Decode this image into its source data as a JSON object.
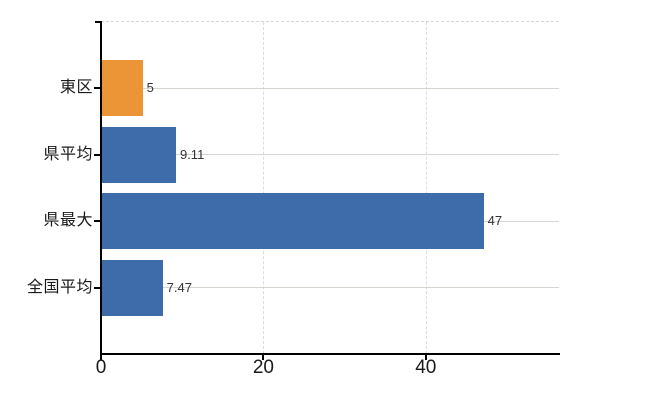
{
  "chart_data": {
    "type": "bar",
    "orientation": "horizontal",
    "title": "",
    "xlabel": "",
    "ylabel": "",
    "categories": [
      "東区",
      "県平均",
      "県最大",
      "全国平均"
    ],
    "values": [
      5,
      9.11,
      47,
      7.47
    ],
    "value_labels": [
      "5",
      "9.11",
      "47",
      "7.47"
    ],
    "bar_colors": [
      "#ec9536",
      "#3e6cab",
      "#3e6cab",
      "#3e6cab"
    ],
    "xlim": [
      0,
      56.4
    ],
    "x_ticks": [
      0,
      20,
      40
    ],
    "x_tick_labels": [
      "0",
      "20",
      "40"
    ],
    "grid": "on",
    "legend": "none"
  },
  "colors": {
    "background": "#ffffff",
    "axis": "#000000",
    "gridline_horizontal": "#d2d8cf",
    "gridline_vertical_dashed": "#dcdcdc",
    "plot_top_border_dashed": "#d7d7d7",
    "bar_highlight_orange": "#ec9536",
    "bar_blue": "#3e6cab",
    "label_text": "#1a1a1a",
    "value_text": "#333333"
  }
}
